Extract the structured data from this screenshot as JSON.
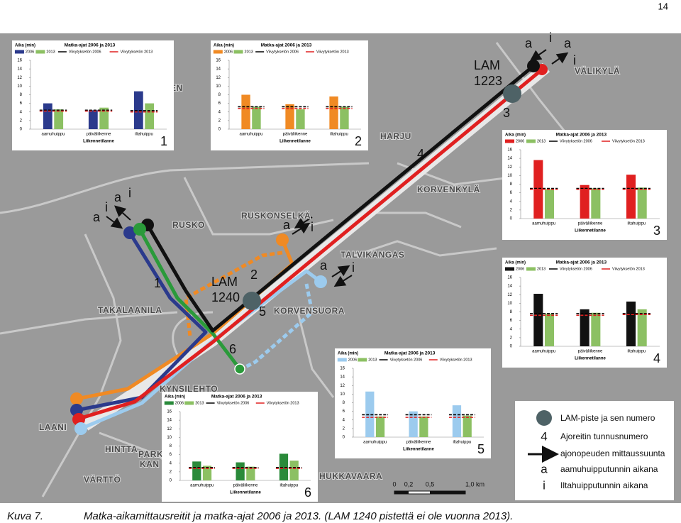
{
  "page_number": "14",
  "caption": {
    "label": "Kuva 7.",
    "text": "Matka-aikamittausreitit ja matka-ajat 2006 ja 2013. (LAM 1240 pistettä ei ole vuonna 2013)."
  },
  "map": {
    "place_names": [
      "EN",
      "HARJU",
      "VÄLIKYLÄ",
      "RUSKO",
      "RUSKONSELKÄ",
      "KORVENKYLÄ",
      "TALVIKANGAS",
      "TAKALAANILA",
      "KORVENSUORA",
      "KYNSILEHTO",
      "LAANI",
      "HINTTA",
      "PARK",
      "KAN",
      "VÄRTTÖ",
      "HUKKAVAARA"
    ],
    "route_numbers": [
      "1",
      "2",
      "3",
      "4",
      "5",
      "6"
    ],
    "lam_points": [
      {
        "name": "LAM",
        "number": "1223"
      },
      {
        "name": "LAM",
        "number": "1240"
      }
    ],
    "direction_labels": [
      "a",
      "i",
      "a",
      "i",
      "a",
      "i",
      "a",
      "i",
      "a",
      "i",
      "a",
      "i"
    ],
    "scale_labels": [
      "0",
      "0,2",
      "0,5",
      "1,0 km"
    ]
  },
  "legend": {
    "items": [
      {
        "text": "LAM-piste ja sen numero"
      },
      {
        "symbol": "4",
        "text": "Ajoreitin tunnusnumero"
      },
      {
        "text": "ajonopeuden mittaussuunta"
      },
      {
        "symbol": "a",
        "text": "aamuhuipputunnin aikana"
      },
      {
        "symbol": "i",
        "text": "Iltahuipputunnin aikana"
      }
    ]
  },
  "chart_data": [
    {
      "type": "bar",
      "title": "Matka-ajat 2006 ja 2013",
      "y_label": "Aika (min)",
      "x_label": "Liikennetilanne",
      "number": "1",
      "categories": [
        "aamuhuippu",
        "päiväliikenne",
        "iltahuippu"
      ],
      "series": [
        {
          "name": "2006",
          "color": "#2b3a8c",
          "values": [
            6,
            4.4,
            8.8
          ]
        },
        {
          "name": "2013",
          "color": "#8cc063",
          "values": [
            4.6,
            5,
            6
          ]
        },
        {
          "name": "Viivytyksetön 2006",
          "color": "#000000",
          "style": "dashed",
          "values": [
            4.4,
            4.4,
            4.3
          ]
        },
        {
          "name": "Viivytyksetön 2013",
          "color": "#e02020",
          "style": "dashed",
          "values": [
            4.2,
            4.2,
            4
          ]
        }
      ],
      "ylim": [
        0,
        16
      ],
      "yticks": [
        0,
        2,
        4,
        6,
        8,
        10,
        12,
        14,
        16
      ]
    },
    {
      "type": "bar",
      "title": "Matka-ajat 2006 ja 2013",
      "y_label": "Aika (min)",
      "x_label": "Liikennetilanne",
      "number": "2",
      "categories": [
        "aamuhuippu",
        "päiväliikenne",
        "iltahuippu"
      ],
      "series": [
        {
          "name": "2006",
          "color": "#f08a24",
          "values": [
            8,
            5.8,
            7.6
          ]
        },
        {
          "name": "2013",
          "color": "#8cc063",
          "values": [
            5.2,
            4.6,
            5.2
          ]
        },
        {
          "name": "Viivytyksetön 2006",
          "color": "#000000",
          "style": "dashed",
          "values": [
            5.2,
            5.2,
            5.2
          ]
        },
        {
          "name": "Viivytyksetön 2013",
          "color": "#e02020",
          "style": "dashed",
          "values": [
            4.8,
            4.8,
            4.8
          ]
        }
      ],
      "ylim": [
        0,
        16
      ],
      "yticks": [
        0,
        2,
        4,
        6,
        8,
        10,
        12,
        14,
        16
      ]
    },
    {
      "type": "bar",
      "title": "Matka-ajat 2006 ja 2013",
      "y_label": "Aika (min)",
      "x_label": "Liikennetilanne",
      "number": "3",
      "categories": [
        "aamuhuippu",
        "päiväliikenne",
        "iltahuippu"
      ],
      "series": [
        {
          "name": "2006",
          "color": "#e02020",
          "values": [
            13.6,
            7.8,
            10.2
          ]
        },
        {
          "name": "2013",
          "color": "#8cc063",
          "values": [
            6.8,
            7,
            7.2
          ]
        },
        {
          "name": "Viivytyksetön 2006",
          "color": "#000000",
          "style": "dashed",
          "values": [
            7,
            7,
            7
          ]
        },
        {
          "name": "Viivytyksetön 2013",
          "color": "#e02020",
          "style": "dashed",
          "values": [
            6.8,
            6.8,
            6.8
          ]
        }
      ],
      "ylim": [
        0,
        16
      ],
      "yticks": [
        0,
        2,
        4,
        6,
        8,
        10,
        12,
        14,
        16
      ]
    },
    {
      "type": "bar",
      "title": "Matka-ajat 2006 ja 2013",
      "y_label": "Aika (min)",
      "x_label": "Liikennetilanne",
      "number": "4",
      "categories": [
        "aamuhuippu",
        "päiväliikenne",
        "iltahuippu"
      ],
      "series": [
        {
          "name": "2006",
          "color": "#111111",
          "values": [
            12.2,
            8.6,
            10.4
          ]
        },
        {
          "name": "2013",
          "color": "#8cc063",
          "values": [
            7.6,
            7.8,
            8.6
          ]
        },
        {
          "name": "Viivytyksetön 2006",
          "color": "#000000",
          "style": "dashed",
          "values": [
            7.6,
            7.6,
            7.6
          ]
        },
        {
          "name": "Viivytyksetön 2013",
          "color": "#e02020",
          "style": "dashed",
          "values": [
            7.2,
            7.2,
            7.4
          ]
        }
      ],
      "ylim": [
        0,
        16
      ],
      "yticks": [
        0,
        2,
        4,
        6,
        8,
        10,
        12,
        14,
        16
      ]
    },
    {
      "type": "bar",
      "title": "Matka-ajat 2006 ja 2013",
      "y_label": "Aika (min)",
      "x_label": "Liikennetilanne",
      "number": "5",
      "categories": [
        "aamuhuippu",
        "päiväliikenne",
        "iltahuippu"
      ],
      "series": [
        {
          "name": "2006",
          "color": "#9ccbee",
          "values": [
            10.6,
            6,
            7.4
          ]
        },
        {
          "name": "2013",
          "color": "#8cc063",
          "values": [
            4.8,
            4.8,
            5
          ]
        },
        {
          "name": "Viivytyksetön 2006",
          "color": "#000000",
          "style": "dashed",
          "values": [
            5.2,
            5.2,
            5.2
          ]
        },
        {
          "name": "Viivytyksetön 2013",
          "color": "#e02020",
          "style": "dashed",
          "values": [
            4.6,
            4.6,
            4.6
          ]
        }
      ],
      "ylim": [
        0,
        16
      ],
      "yticks": [
        0,
        2,
        4,
        6,
        8,
        10,
        12,
        14,
        16
      ]
    },
    {
      "type": "bar",
      "title": "Matka-ajat 2006 ja 2013",
      "y_label": "Aika (min)",
      "x_label": "Liikennetilanne",
      "number": "6",
      "categories": [
        "aamuhuippu",
        "päiväliikenne",
        "iltahuippu"
      ],
      "series": [
        {
          "name": "2006",
          "color": "#2a8a3a",
          "values": [
            4.4,
            4.2,
            6.2
          ]
        },
        {
          "name": "2013",
          "color": "#8cc063",
          "values": [
            3.4,
            3.2,
            4.6
          ]
        },
        {
          "name": "Viivytyksetön 2006",
          "color": "#000000",
          "style": "dashed",
          "values": [
            3,
            3,
            3
          ]
        },
        {
          "name": "Viivytyksetön 2013",
          "color": "#e02020",
          "style": "dashed",
          "values": [
            2.8,
            2.8,
            2.8
          ]
        }
      ],
      "ylim": [
        0,
        16
      ],
      "yticks": [
        0,
        2,
        4,
        6,
        8,
        10,
        12,
        14,
        16
      ]
    }
  ]
}
